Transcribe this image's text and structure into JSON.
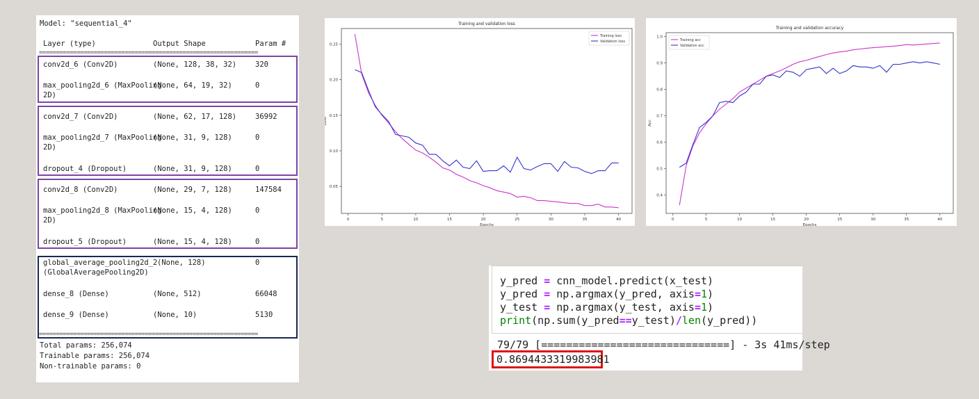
{
  "summary": {
    "model_line": "Model: \"sequential_4\"",
    "headers": {
      "layer": "Layer (type)",
      "shape": "Output Shape",
      "params": "Param #"
    },
    "rule_dash": "________________________________________________________________",
    "rule_equals": "================================================================",
    "rows": [
      {
        "layer": "conv2d_6 (Conv2D)",
        "shape": "(None, 128, 38, 32)",
        "params": "320"
      },
      {
        "layer": "max_pooling2d_6 (MaxPooling\n2D)",
        "shape": "(None, 64, 19, 32)",
        "params": "0"
      },
      {
        "layer": "conv2d_7 (Conv2D)",
        "shape": "(None, 62, 17, 128)",
        "params": "36992"
      },
      {
        "layer": "max_pooling2d_7 (MaxPooling\n2D)",
        "shape": "(None, 31, 9, 128)",
        "params": "0"
      },
      {
        "layer": "dropout_4 (Dropout)",
        "shape": "(None, 31, 9, 128)",
        "params": "0"
      },
      {
        "layer": "conv2d_8 (Conv2D)",
        "shape": "(None, 29, 7, 128)",
        "params": "147584"
      },
      {
        "layer": "max_pooling2d_8 (MaxPooling\n2D)",
        "shape": "(None, 15, 4, 128)",
        "params": "0"
      },
      {
        "layer": "dropout_5 (Dropout)",
        "shape": "(None, 15, 4, 128)",
        "params": "0"
      },
      {
        "layer": "global_average_pooling2d_2\n(GlobalAveragePooling2D)",
        "shape": "(None, 128)",
        "params": "0"
      },
      {
        "layer": "dense_8 (Dense)",
        "shape": "(None, 512)",
        "params": "66048"
      },
      {
        "layer": "dense_9 (Dense)",
        "shape": "(None, 10)",
        "params": "5130"
      }
    ],
    "total_params": "Total params: 256,074",
    "trainable_params": "Trainable params: 256,074",
    "non_trainable_params": "Non-trainable params: 0",
    "group_colors": {
      "conv": "#7a44a8",
      "head": "#1a2850"
    }
  },
  "chart_data": [
    {
      "type": "line",
      "title": "Training and validation loss",
      "xlabel": "Epochs",
      "ylabel": "Loss",
      "xlim": [
        -1,
        42
      ],
      "ylim": [
        0.012,
        0.272
      ],
      "xticks": [
        0,
        5,
        10,
        15,
        20,
        25,
        30,
        35,
        40
      ],
      "yticks": [
        0.05,
        0.1,
        0.15,
        0.2,
        0.25
      ],
      "ytick_labels": [
        "0.05",
        "0.10",
        "0.15",
        "0.20",
        "0.25"
      ],
      "legend_position": "top-right",
      "x": [
        1,
        2,
        3,
        4,
        5,
        6,
        7,
        8,
        9,
        10,
        11,
        12,
        13,
        14,
        15,
        16,
        17,
        18,
        19,
        20,
        21,
        22,
        23,
        24,
        25,
        26,
        27,
        28,
        29,
        30,
        31,
        32,
        33,
        34,
        35,
        36,
        37,
        38,
        39,
        40
      ],
      "series": [
        {
          "name": "Training loss",
          "color": "#cc33cc",
          "values": [
            0.264,
            0.208,
            0.182,
            0.164,
            0.15,
            0.139,
            0.127,
            0.117,
            0.109,
            0.101,
            0.097,
            0.091,
            0.084,
            0.076,
            0.073,
            0.067,
            0.063,
            0.058,
            0.055,
            0.051,
            0.048,
            0.044,
            0.042,
            0.04,
            0.035,
            0.036,
            0.034,
            0.03,
            0.03,
            0.029,
            0.028,
            0.027,
            0.026,
            0.026,
            0.023,
            0.023,
            0.025,
            0.021,
            0.021,
            0.02
          ]
        },
        {
          "name": "Validation loss",
          "color": "#3333cc",
          "values": [
            0.214,
            0.21,
            0.185,
            0.162,
            0.151,
            0.141,
            0.123,
            0.121,
            0.119,
            0.111,
            0.108,
            0.095,
            0.095,
            0.086,
            0.079,
            0.087,
            0.077,
            0.075,
            0.086,
            0.071,
            0.072,
            0.072,
            0.079,
            0.07,
            0.091,
            0.075,
            0.073,
            0.078,
            0.082,
            0.082,
            0.071,
            0.085,
            0.077,
            0.076,
            0.071,
            0.068,
            0.072,
            0.072,
            0.083,
            0.083
          ]
        }
      ]
    },
    {
      "type": "line",
      "title": "Training and validation accuracy",
      "xlabel": "Epochs",
      "ylabel": "Acc",
      "xlim": [
        -1,
        42
      ],
      "ylim": [
        0.33,
        1.015
      ],
      "xticks": [
        0,
        5,
        10,
        15,
        20,
        25,
        30,
        35,
        40
      ],
      "yticks": [
        0.4,
        0.5,
        0.6,
        0.7,
        0.8,
        0.9,
        1.0
      ],
      "ytick_labels": [
        "0.4",
        "0.5",
        "0.6",
        "0.7",
        "0.8",
        "0.9",
        "1.0"
      ],
      "legend_position": "top-left",
      "x": [
        1,
        2,
        3,
        4,
        5,
        6,
        7,
        8,
        9,
        10,
        11,
        12,
        13,
        14,
        15,
        16,
        17,
        18,
        19,
        20,
        21,
        22,
        23,
        24,
        25,
        26,
        27,
        28,
        29,
        30,
        31,
        32,
        33,
        34,
        35,
        36,
        37,
        38,
        39,
        40
      ],
      "series": [
        {
          "name": "Training acc",
          "color": "#cc33cc",
          "values": [
            0.361,
            0.51,
            0.585,
            0.635,
            0.67,
            0.7,
            0.725,
            0.745,
            0.765,
            0.79,
            0.805,
            0.82,
            0.835,
            0.85,
            0.86,
            0.87,
            0.882,
            0.895,
            0.905,
            0.91,
            0.918,
            0.925,
            0.932,
            0.938,
            0.942,
            0.945,
            0.95,
            0.953,
            0.956,
            0.958,
            0.96,
            0.962,
            0.964,
            0.966,
            0.97,
            0.968,
            0.97,
            0.972,
            0.974,
            0.976
          ]
        },
        {
          "name": "Validation acc",
          "color": "#3333cc",
          "values": [
            0.505,
            0.52,
            0.59,
            0.655,
            0.675,
            0.7,
            0.75,
            0.755,
            0.75,
            0.775,
            0.79,
            0.82,
            0.82,
            0.85,
            0.855,
            0.845,
            0.87,
            0.865,
            0.85,
            0.875,
            0.88,
            0.885,
            0.86,
            0.88,
            0.86,
            0.87,
            0.89,
            0.885,
            0.885,
            0.88,
            0.89,
            0.865,
            0.895,
            0.895,
            0.9,
            0.905,
            0.9,
            0.905,
            0.9,
            0.895
          ]
        }
      ]
    }
  ],
  "code": {
    "l1": {
      "a": "y_pred ",
      "op": "=",
      "b": " cnn_model.predict(x_test)"
    },
    "l2": {
      "a": "y_pred ",
      "op": "=",
      "b": " np.argmax(y_pred, axis",
      "op2": "=",
      "n": "1",
      "c": ")"
    },
    "l3": {
      "a": "y_test ",
      "op": "=",
      "b": " np.argmax(y_test, axis",
      "op2": "=",
      "n": "1",
      "c": ")"
    },
    "l4": {
      "kw": "print",
      "a": "(np.sum(y_pred",
      "op": "==",
      "b": "y_test)",
      "op2": "/",
      "kw2": "len",
      "c": "(y_pred))"
    },
    "progress_line": "79/79 [==============================] - 3s 41ms/step",
    "result": "0.8694433319983981",
    "highlight_color": "#e01010"
  }
}
